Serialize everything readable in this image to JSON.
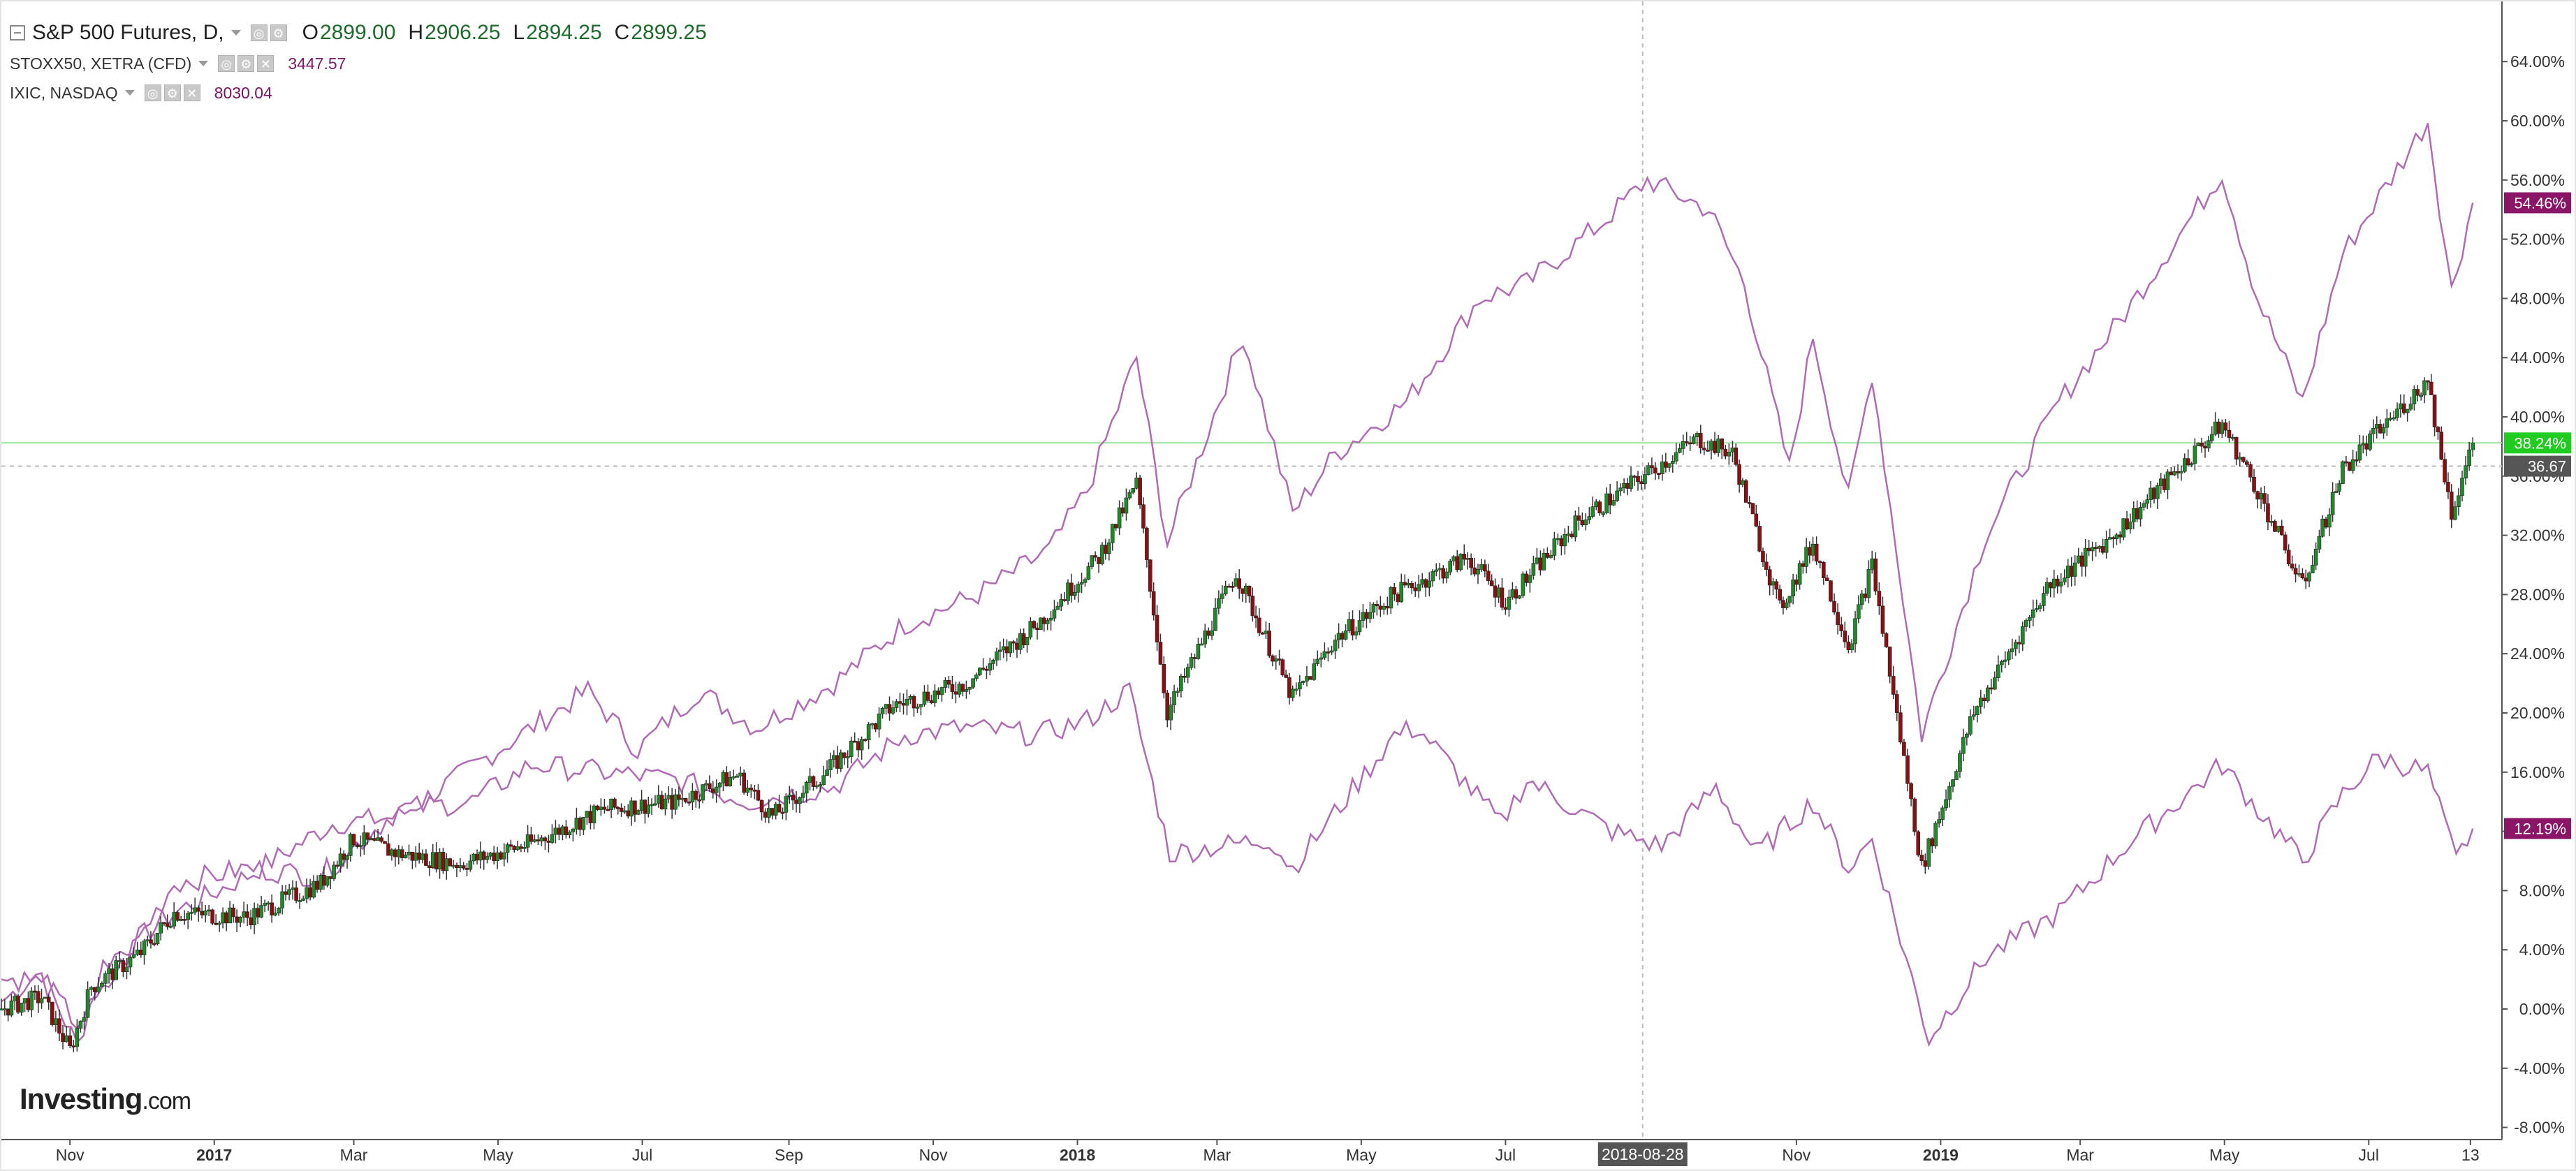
{
  "legend": {
    "main": {
      "title": "S&P 500 Futures, D,",
      "o_label": "O",
      "o_value": "2899.00",
      "h_label": "H",
      "h_value": "2906.25",
      "l_label": "L",
      "l_value": "2894.25",
      "c_label": "C",
      "c_value": "2899.25"
    },
    "stoxx": {
      "title": "STOXX50, XETRA (CFD)",
      "value": "3447.57"
    },
    "ixic": {
      "title": "IXIC, NASDAQ",
      "value": "8030.04"
    }
  },
  "logo": {
    "text": "Investing",
    "suffix": ".com"
  },
  "crosshair": {
    "date_label": "2018-08-28"
  },
  "price_tags": [
    {
      "text": "54.46%",
      "value": 54.46,
      "color": "#8a1466"
    },
    {
      "text": "38.24%",
      "value": 38.24,
      "color": "#1fcc1f"
    },
    {
      "text": "36.67",
      "value": 36.67,
      "color": "#555555"
    },
    {
      "text": "12.19%",
      "value": 12.19,
      "color": "#8a1466"
    }
  ],
  "colors": {
    "up_candle": "#1f8a2a",
    "down_candle": "#8a0f12",
    "wick": "#333333",
    "compare_line": "#b06ab6",
    "background": "#ffffff",
    "grid_highlight": "#9fe39f",
    "axis_text": "#333333"
  },
  "chart_data": {
    "type": "candlestick-with-comparison-lines",
    "title": "S&P 500 Futures, D,",
    "y_axis": {
      "unit": "percent change",
      "ylim": [
        -8,
        66
      ],
      "tick_labels": [
        "64.00%",
        "60.00%",
        "56.00%",
        "52.00%",
        "48.00%",
        "44.00%",
        "40.00%",
        "36.00%",
        "32.00%",
        "28.00%",
        "24.00%",
        "20.00%",
        "16.00%",
        "12.00%",
        "8.00%",
        "4.00%",
        "0.00%",
        "-4.00%",
        "-8.00%"
      ],
      "tick_values": [
        64,
        60,
        56,
        52,
        48,
        44,
        40,
        36,
        32,
        28,
        24,
        20,
        16,
        12,
        8,
        4,
        0,
        -4,
        -8
      ],
      "position": "right"
    },
    "x_axis": {
      "tick_labels": [
        "Nov",
        "2017",
        "Mar",
        "May",
        "Jul",
        "Sep",
        "Nov",
        "2018",
        "Mar",
        "May",
        "Jul",
        "Nov",
        "2019",
        "Mar",
        "May",
        "Jul",
        "13"
      ],
      "tick_dates": [
        "2016-11-01",
        "2017-01-01",
        "2017-03-01",
        "2017-05-01",
        "2017-07-01",
        "2017-09-01",
        "2017-11-01",
        "2018-01-01",
        "2018-03-01",
        "2018-05-01",
        "2018-07-01",
        "2018-11-01",
        "2019-01-01",
        "2019-03-01",
        "2019-05-01",
        "2019-07-01",
        "2019-08-13"
      ],
      "range": [
        "2016-10-03",
        "2019-08-16"
      ]
    },
    "series": [
      {
        "name": "S&P 500 Futures",
        "style": "candlestick",
        "points": [
          [
            "2016-10-03",
            0.0
          ],
          [
            "2016-10-20",
            0.8
          ],
          [
            "2016-11-01",
            -2.8
          ],
          [
            "2016-11-10",
            1.5
          ],
          [
            "2016-12-01",
            3.8
          ],
          [
            "2016-12-15",
            6.5
          ],
          [
            "2017-01-15",
            6.2
          ],
          [
            "2017-02-15",
            8.5
          ],
          [
            "2017-03-01",
            11.5
          ],
          [
            "2017-03-20",
            10.5
          ],
          [
            "2017-04-15",
            9.8
          ],
          [
            "2017-05-15",
            11.2
          ],
          [
            "2017-06-15",
            13.5
          ],
          [
            "2017-07-15",
            14.0
          ],
          [
            "2017-08-10",
            15.8
          ],
          [
            "2017-08-25",
            13.0
          ],
          [
            "2017-09-20",
            16.5
          ],
          [
            "2017-10-15",
            20.5
          ],
          [
            "2017-11-15",
            22.0
          ],
          [
            "2017-12-15",
            26.0
          ],
          [
            "2018-01-10",
            30.5
          ],
          [
            "2018-01-26",
            35.5
          ],
          [
            "2018-02-08",
            20.0
          ],
          [
            "2018-03-09",
            29.5
          ],
          [
            "2018-04-02",
            21.0
          ],
          [
            "2018-04-20",
            25.0
          ],
          [
            "2018-05-15",
            28.0
          ],
          [
            "2018-06-15",
            30.5
          ],
          [
            "2018-07-01",
            27.5
          ],
          [
            "2018-08-01",
            33.0
          ],
          [
            "2018-09-20",
            38.5
          ],
          [
            "2018-10-05",
            37.5
          ],
          [
            "2018-10-25",
            27.0
          ],
          [
            "2018-11-08",
            31.5
          ],
          [
            "2018-11-23",
            24.5
          ],
          [
            "2018-12-03",
            30.0
          ],
          [
            "2018-12-24",
            9.5
          ],
          [
            "2019-01-15",
            20.0
          ],
          [
            "2019-02-15",
            28.5
          ],
          [
            "2019-03-15",
            32.0
          ],
          [
            "2019-04-30",
            39.5
          ],
          [
            "2019-05-15",
            35.0
          ],
          [
            "2019-06-03",
            28.5
          ],
          [
            "2019-06-20",
            36.5
          ],
          [
            "2019-07-26",
            42.5
          ],
          [
            "2019-08-05",
            33.5
          ],
          [
            "2019-08-14",
            38.24
          ]
        ]
      },
      {
        "name": "IXIC, NASDAQ",
        "style": "line",
        "points": [
          [
            "2016-10-03",
            0.5
          ],
          [
            "2016-10-20",
            2.5
          ],
          [
            "2016-11-04",
            -2.5
          ],
          [
            "2016-11-15",
            3.0
          ],
          [
            "2016-12-15",
            6.5
          ],
          [
            "2017-01-15",
            9.0
          ],
          [
            "2017-02-20",
            12.5
          ],
          [
            "2017-03-20",
            13.0
          ],
          [
            "2017-05-01",
            17.5
          ],
          [
            "2017-06-08",
            21.5
          ],
          [
            "2017-06-29",
            17.5
          ],
          [
            "2017-07-25",
            21.5
          ],
          [
            "2017-08-18",
            19.0
          ],
          [
            "2017-09-20",
            22.0
          ],
          [
            "2017-10-20",
            26.0
          ],
          [
            "2017-11-20",
            28.0
          ],
          [
            "2017-12-20",
            31.0
          ],
          [
            "2018-01-05",
            35.0
          ],
          [
            "2018-01-26",
            44.0
          ],
          [
            "2018-02-08",
            31.5
          ],
          [
            "2018-03-12",
            45.5
          ],
          [
            "2018-04-02",
            33.5
          ],
          [
            "2018-04-20",
            37.5
          ],
          [
            "2018-05-20",
            41.0
          ],
          [
            "2018-06-20",
            48.0
          ],
          [
            "2018-07-10",
            49.0
          ],
          [
            "2018-08-10",
            53.0
          ],
          [
            "2018-08-30",
            56.0
          ],
          [
            "2018-09-25",
            54.0
          ],
          [
            "2018-10-10",
            49.0
          ],
          [
            "2018-10-29",
            36.5
          ],
          [
            "2018-11-08",
            45.5
          ],
          [
            "2018-11-23",
            34.5
          ],
          [
            "2018-12-03",
            43.0
          ],
          [
            "2018-12-24",
            18.5
          ],
          [
            "2019-01-20",
            32.0
          ],
          [
            "2019-02-20",
            41.0
          ],
          [
            "2019-03-20",
            47.0
          ],
          [
            "2019-04-30",
            56.5
          ],
          [
            "2019-05-15",
            48.0
          ],
          [
            "2019-06-03",
            41.0
          ],
          [
            "2019-06-20",
            51.0
          ],
          [
            "2019-07-26",
            60.0
          ],
          [
            "2019-08-05",
            48.5
          ],
          [
            "2019-08-14",
            54.46
          ]
        ]
      },
      {
        "name": "STOXX50, XETRA (CFD)",
        "style": "line",
        "points": [
          [
            "2016-10-03",
            2.0
          ],
          [
            "2016-10-20",
            2.0
          ],
          [
            "2016-11-04",
            -1.0
          ],
          [
            "2016-11-15",
            1.0
          ],
          [
            "2016-12-15",
            8.5
          ],
          [
            "2017-01-15",
            9.5
          ],
          [
            "2017-02-15",
            9.0
          ],
          [
            "2017-03-20",
            13.5
          ],
          [
            "2017-04-20",
            14.0
          ],
          [
            "2017-05-15",
            16.5
          ],
          [
            "2017-06-15",
            16.0
          ],
          [
            "2017-07-15",
            15.5
          ],
          [
            "2017-08-15",
            14.0
          ],
          [
            "2017-09-20",
            15.0
          ],
          [
            "2017-10-20",
            18.5
          ],
          [
            "2017-11-15",
            19.0
          ],
          [
            "2017-12-15",
            18.5
          ],
          [
            "2018-01-05",
            19.5
          ],
          [
            "2018-01-23",
            21.5
          ],
          [
            "2018-02-09",
            10.5
          ],
          [
            "2018-03-23",
            11.5
          ],
          [
            "2018-04-02",
            9.5
          ],
          [
            "2018-05-15",
            18.5
          ],
          [
            "2018-05-25",
            19.0
          ],
          [
            "2018-06-29",
            12.5
          ],
          [
            "2018-07-10",
            15.5
          ],
          [
            "2018-08-15",
            12.0
          ],
          [
            "2018-09-05",
            11.0
          ],
          [
            "2018-09-28",
            15.0
          ],
          [
            "2018-10-15",
            10.5
          ],
          [
            "2018-11-08",
            14.0
          ],
          [
            "2018-11-23",
            9.5
          ],
          [
            "2018-12-03",
            11.5
          ],
          [
            "2018-12-27",
            -2.0
          ],
          [
            "2019-01-20",
            3.5
          ],
          [
            "2019-02-20",
            6.5
          ],
          [
            "2019-03-20",
            11.0
          ],
          [
            "2019-04-30",
            16.5
          ],
          [
            "2019-05-15",
            13.5
          ],
          [
            "2019-06-03",
            10.0
          ],
          [
            "2019-06-20",
            14.5
          ],
          [
            "2019-07-05",
            17.0
          ],
          [
            "2019-07-26",
            16.0
          ],
          [
            "2019-08-07",
            10.0
          ],
          [
            "2019-08-14",
            12.19
          ]
        ]
      }
    ],
    "grid": false,
    "legend_position": "top-left"
  }
}
